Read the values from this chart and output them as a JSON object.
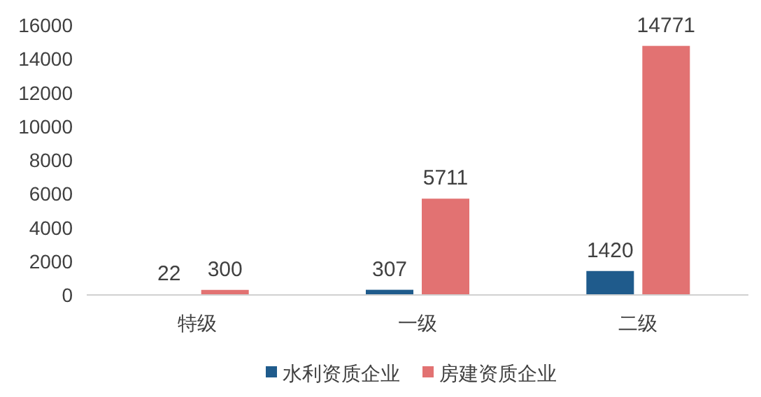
{
  "chart_data": {
    "type": "bar",
    "categories": [
      "特级",
      "一级",
      "二级"
    ],
    "series": [
      {
        "name": "水利资质企业",
        "color": "#1f5b8c",
        "colors": [
          "#a9c6de",
          "#1f5b8c",
          "#1f5b8c"
        ],
        "values": [
          22,
          307,
          1420
        ]
      },
      {
        "name": "房建资质企业",
        "color": "#e27272",
        "values": [
          300,
          5711,
          14771
        ]
      }
    ],
    "ylim": [
      0,
      16000
    ],
    "yticks": [
      0,
      2000,
      4000,
      6000,
      8000,
      10000,
      12000,
      14000,
      16000
    ],
    "grid": false,
    "legend": "bottom",
    "data_labels": true
  }
}
